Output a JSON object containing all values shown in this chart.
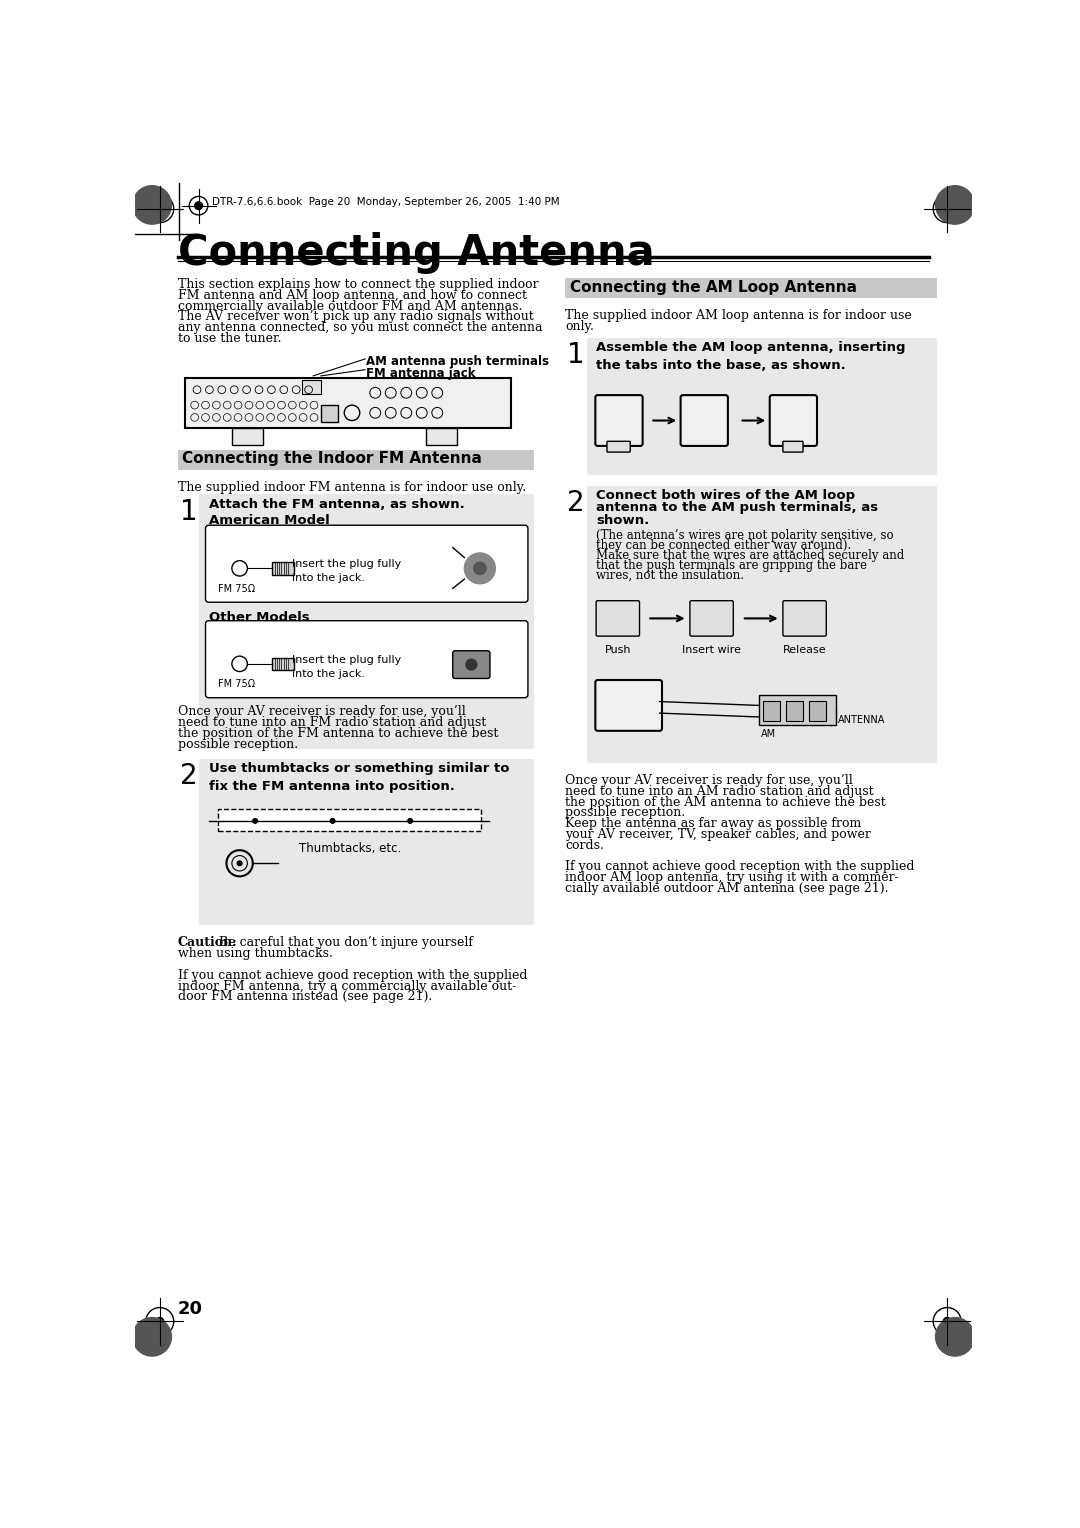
{
  "page_header": "DTR-7.6,6.6.book  Page 20  Monday, September 26, 2005  1:40 PM",
  "page_title": "Connecting Antenna",
  "page_number": "20",
  "bg_color": "#ffffff",
  "section_header_bg": "#c8c8c8",
  "step_bg": "#e8e8e8",
  "label_am": "AM antenna push terminals",
  "label_fm": "FM antenna jack",
  "section1_title": "Connecting the Indoor FM Antenna",
  "section1_intro": "The supplied indoor FM antenna is for indoor use only.",
  "step1_text": "Attach the FM antenna, as shown.",
  "american_model": "American Model",
  "other_models": "Other Models",
  "insert_text": "Insert the plug fully\ninto the jack.",
  "fm_75ohm": "FM 75Ω",
  "once_fm_lines": [
    "Once your AV receiver is ready for use, you’ll",
    "need to tune into an FM radio station and adjust",
    "the position of the FM antenna to achieve the best",
    "possible reception."
  ],
  "step2_text_bold": "Use thumbtacks or something similar to\nfix the FM antenna into position.",
  "thumbtacks_label": "Thumbtacks, etc.",
  "caution_bold": "Caution:",
  "caution_rest": " Be careful that you don’t injure yourself",
  "caution_line2": "when using thumbtacks.",
  "if_cannot_fm_lines": [
    "If you cannot achieve good reception with the supplied",
    "indoor FM antenna, try a commercially available out-",
    "door FM antenna instead (see page 21)."
  ],
  "section2_title": "Connecting the AM Loop Antenna",
  "section2_intro_lines": [
    "The supplied indoor AM loop antenna is for indoor use",
    "only."
  ],
  "am_step1_text": "Assemble the AM loop antenna, inserting\nthe tabs into the base, as shown.",
  "am_step2_bold_lines": [
    "Connect both wires of the AM loop",
    "antenna to the AM push terminals, as",
    "shown."
  ],
  "am_step2_detail_lines": [
    "(The antenna’s wires are not polarity sensitive, so",
    "they can be connected either way around).",
    "Make sure that the wires are attached securely and",
    "that the push terminals are gripping the bare",
    "wires, not the insulation."
  ],
  "push_label": "Push",
  "insert_wire_label": "Insert wire",
  "release_label": "Release",
  "antenna_label": "ANTENNA",
  "am_label": "AM",
  "once_am_lines": [
    "Once your AV receiver is ready for use, you’ll",
    "need to tune into an AM radio station and adjust",
    "the position of the AM antenna to achieve the best",
    "possible reception.",
    "Keep the antenna as far away as possible from",
    "your AV receiver, TV, speaker cables, and power",
    "cords."
  ],
  "if_cannot_am_lines": [
    "If you cannot achieve good reception with the supplied",
    "indoor AM loop antenna, try using it with a commer-",
    "cially available outdoor AM antenna (see page 21)."
  ],
  "intro_lines": [
    "This section explains how to connect the supplied indoor",
    "FM antenna and AM loop antenna, and how to connect",
    "commercially available outdoor FM and AM antennas.",
    "The AV receiver won’t pick up any radio signals without",
    "any antenna connected, so you must connect the antenna",
    "to use the tuner."
  ]
}
